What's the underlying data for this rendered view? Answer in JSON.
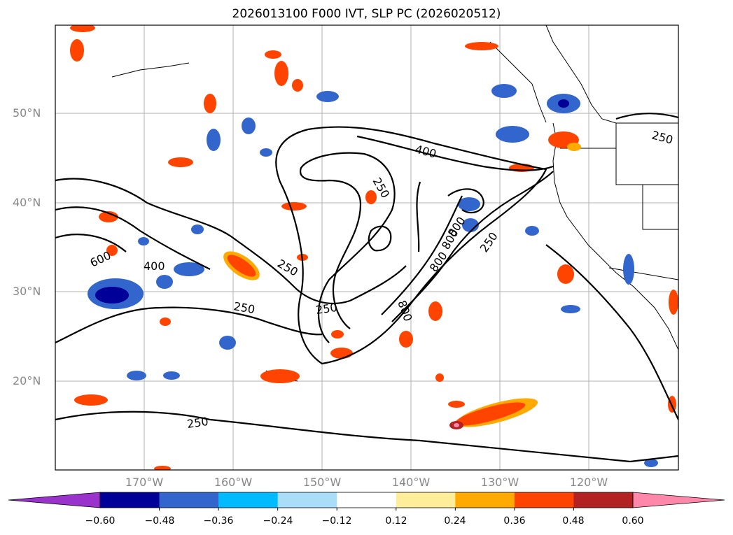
{
  "title": "2026013100 F000 IVT, SLP PC (2026020512)",
  "latitude_ticks": [
    "50°N",
    "40°N",
    "30°N",
    "20°N"
  ],
  "longitude_ticks": [
    "170°W",
    "160°W",
    "150°W",
    "140°W",
    "130°W",
    "120°W"
  ],
  "contour_labels": [
    "600",
    "400",
    "250",
    "250",
    "250",
    "250",
    "400",
    "250",
    "800",
    "800",
    "800",
    "800",
    "250",
    "250"
  ],
  "colorbar": {
    "tick_labels": [
      "−0.60",
      "−0.48",
      "−0.36",
      "−0.24",
      "−0.12",
      "0.12",
      "0.24",
      "0.36",
      "0.48",
      "0.60"
    ],
    "colors": [
      "#9933cc",
      "#000099",
      "#3366cc",
      "#00bbff",
      "#aaddf8",
      "#ffffff",
      "#ffee99",
      "#ffaa00",
      "#ff4400",
      "#b22222",
      "#ff88aa"
    ]
  }
}
